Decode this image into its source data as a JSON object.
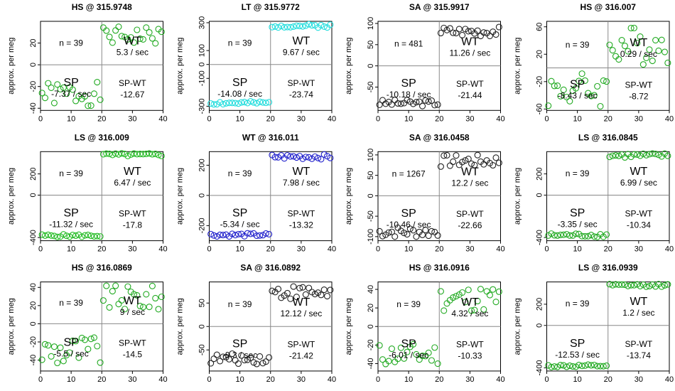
{
  "chart_data": [
    {
      "type": "scatter",
      "title": "HS @ 315.9748",
      "ylabel": "approx. per meg",
      "xlim": [
        0,
        40
      ],
      "ylim": [
        -42,
        40
      ],
      "yticks": [
        -40,
        -20,
        0,
        20
      ],
      "xticks": [
        0,
        10,
        20,
        30,
        40
      ],
      "color": "#22aa22",
      "seed": 1,
      "n_label": "n = 39",
      "sp_label": "SP",
      "sp_rate": "-7.37 / sec",
      "wt_label": "WT",
      "wt_rate": "5.3 / sec",
      "spwt_label": "SP-WT",
      "spwt_value": "-12.67",
      "sp_range": [
        -38,
        -16
      ],
      "wt_range": [
        18,
        35
      ]
    },
    {
      "type": "scatter",
      "title": "LT @ 315.9772",
      "ylabel": "approx. per meg",
      "xlim": [
        0,
        40
      ],
      "ylim": [
        -330,
        310
      ],
      "yticks": [
        -300,
        -100,
        0,
        100,
        300
      ],
      "xticks": [
        0,
        10,
        20,
        30,
        40
      ],
      "color": "#22dddd",
      "seed": 2,
      "n_label": "n = 39",
      "sp_label": "SP",
      "sp_rate": "-14.08 / sec",
      "wt_label": "WT",
      "wt_rate": "9.67 / sec",
      "spwt_label": "SP-WT",
      "spwt_value": "-23.74",
      "sp_range": [
        -290,
        -265
      ],
      "wt_range": [
        265,
        290
      ]
    },
    {
      "type": "scatter",
      "title": "SA @ 315.9917",
      "ylabel": "approx. per meg",
      "xlim": [
        0,
        40
      ],
      "ylim": [
        -105,
        105
      ],
      "yticks": [
        -50,
        0,
        50,
        100
      ],
      "xticks": [
        0,
        10,
        20,
        30,
        40
      ],
      "color": "#222222",
      "seed": 3,
      "n_label": "n = 481",
      "sp_label": "SP",
      "sp_rate": "-10.18 / sec",
      "wt_label": "WT",
      "wt_rate": "11.26 / sec",
      "spwt_label": "SP-WT",
      "spwt_value": "-21.44",
      "sp_range": [
        -95,
        -80
      ],
      "wt_range": [
        70,
        93
      ]
    },
    {
      "type": "scatter",
      "title": "HS @ 316.007",
      "ylabel": "approx. per meg",
      "xlim": [
        0,
        40
      ],
      "ylim": [
        -62,
        68
      ],
      "yticks": [
        -60,
        -20,
        20,
        60
      ],
      "xticks": [
        0,
        10,
        20,
        30,
        40
      ],
      "color": "#22aa22",
      "seed": 4,
      "n_label": "n = 39",
      "sp_label": "SP",
      "sp_rate": "-8.43 / sec",
      "wt_label": "WT",
      "wt_rate": "0.29 / sec",
      "spwt_label": "SP-WT",
      "spwt_value": "-8.72",
      "sp_range": [
        -58,
        -5
      ],
      "wt_range": [
        5,
        62
      ]
    },
    {
      "type": "scatter",
      "title": "LS @ 316.009",
      "ylabel": "approx. per meg",
      "xlim": [
        0,
        40
      ],
      "ylim": [
        -430,
        410
      ],
      "yticks": [
        -400,
        0,
        200
      ],
      "xticks": [
        0,
        10,
        20,
        30,
        40
      ],
      "color": "#22bb22",
      "seed": 5,
      "n_label": "n = 39",
      "sp_label": "SP",
      "sp_rate": "-11.32 / sec",
      "wt_label": "WT",
      "wt_rate": "6.47 / sec",
      "spwt_label": "SP-WT",
      "spwt_value": "-17.8",
      "sp_range": [
        -395,
        -370
      ],
      "wt_range": [
        365,
        395
      ]
    },
    {
      "type": "scatter",
      "title": "WT @ 316.011",
      "ylabel": "approx. per meg",
      "xlim": [
        0,
        40
      ],
      "ylim": [
        -300,
        290
      ],
      "yticks": [
        -200,
        0,
        200
      ],
      "xticks": [
        0,
        10,
        20,
        30,
        40
      ],
      "color": "#2222cc",
      "seed": 6,
      "n_label": "n = 39",
      "sp_label": "SP",
      "sp_rate": "-5.34 / sec",
      "wt_label": "WT",
      "wt_rate": "7.98 / sec",
      "spwt_label": "SP-WT",
      "spwt_value": "-13.32",
      "sp_range": [
        -272,
        -250
      ],
      "wt_range": [
        240,
        272
      ]
    },
    {
      "type": "scatter",
      "title": "SA @ 316.0458",
      "ylabel": "approx. per meg",
      "xlim": [
        0,
        40
      ],
      "ylim": [
        -110,
        108
      ],
      "yticks": [
        -100,
        -50,
        0,
        50,
        100
      ],
      "xticks": [
        0,
        10,
        20,
        30,
        40
      ],
      "color": "#222222",
      "seed": 7,
      "n_label": "n = 1267",
      "sp_label": "SP",
      "sp_rate": "-10.46 / sec",
      "wt_label": "WT",
      "wt_rate": "12.2 / sec",
      "spwt_label": "SP-WT",
      "spwt_value": "-22.66",
      "sp_range": [
        -102,
        -75
      ],
      "wt_range": [
        70,
        100
      ]
    },
    {
      "type": "scatter",
      "title": "LS @ 316.0845",
      "ylabel": "approx. per meg",
      "xlim": [
        0,
        40
      ],
      "ylim": [
        -430,
        410
      ],
      "yticks": [
        -400,
        0,
        200
      ],
      "xticks": [
        0,
        10,
        20,
        30,
        40
      ],
      "color": "#22aa22",
      "seed": 8,
      "n_label": "n = 39",
      "sp_label": "SP",
      "sp_rate": "-3.35 / sec",
      "wt_label": "WT",
      "wt_rate": "6.99 / sec",
      "spwt_label": "SP-WT",
      "spwt_value": "-10.34",
      "sp_range": [
        -395,
        -360
      ],
      "wt_range": [
        350,
        395
      ]
    },
    {
      "type": "scatter",
      "title": "HS @ 316.0869",
      "ylabel": "approx. per meg",
      "xlim": [
        0,
        40
      ],
      "ylim": [
        -52,
        46
      ],
      "yticks": [
        -40,
        -20,
        0,
        20,
        40
      ],
      "xticks": [
        0,
        10,
        20,
        30,
        40
      ],
      "color": "#22aa22",
      "seed": 9,
      "n_label": "n = 39",
      "sp_label": "SP",
      "sp_rate": "-5.5 / sec",
      "wt_label": "WT",
      "wt_rate": "9 / sec",
      "spwt_label": "SP-WT",
      "spwt_value": "-14.5",
      "sp_range": [
        -48,
        -12
      ],
      "wt_range": [
        14,
        42
      ]
    },
    {
      "type": "scatter",
      "title": "SA @ 316.0892",
      "ylabel": "approx. per meg",
      "xlim": [
        0,
        40
      ],
      "ylim": [
        -95,
        95
      ],
      "yticks": [
        -50,
        0,
        50
      ],
      "xticks": [
        0,
        10,
        20,
        30,
        40
      ],
      "color": "#222222",
      "seed": 10,
      "n_label": "n = 39",
      "sp_label": "SP",
      "sp_rate": "-9.3 / sec",
      "wt_label": "WT",
      "wt_rate": "12.12 / sec",
      "spwt_label": "SP-WT",
      "spwt_value": "-21.42",
      "sp_range": [
        -80,
        -58
      ],
      "wt_range": [
        58,
        88
      ]
    },
    {
      "type": "scatter",
      "title": "HS @ 316.0916",
      "ylabel": "approx. per meg",
      "xlim": [
        0,
        40
      ],
      "ylim": [
        -48,
        48
      ],
      "yticks": [
        -40,
        -20,
        0,
        20,
        40
      ],
      "xticks": [
        0,
        10,
        20,
        30,
        40
      ],
      "color": "#22aa22",
      "seed": 11,
      "n_label": "n = 39",
      "sp_label": "SP",
      "sp_rate": "-6.01 / sec",
      "wt_label": "WT",
      "wt_rate": "4.32 / sec",
      "spwt_label": "SP-WT",
      "spwt_value": "-10.33",
      "sp_range": [
        -43,
        -18
      ],
      "wt_range": [
        16,
        44
      ]
    },
    {
      "type": "scatter",
      "title": "LS @ 316.0939",
      "ylabel": "approx. per meg",
      "xlim": [
        0,
        40
      ],
      "ylim": [
        -430,
        410
      ],
      "yticks": [
        -400,
        0,
        200
      ],
      "xticks": [
        0,
        10,
        20,
        30,
        40
      ],
      "color": "#22aa22",
      "seed": 12,
      "n_label": "n = 39",
      "sp_label": "SP",
      "sp_rate": "-12.53 / sec",
      "wt_label": "WT",
      "wt_rate": "1.2 / sec",
      "spwt_label": "SP-WT",
      "spwt_value": "-13.74",
      "sp_range": [
        -395,
        -370
      ],
      "wt_range": [
        365,
        390
      ]
    }
  ]
}
